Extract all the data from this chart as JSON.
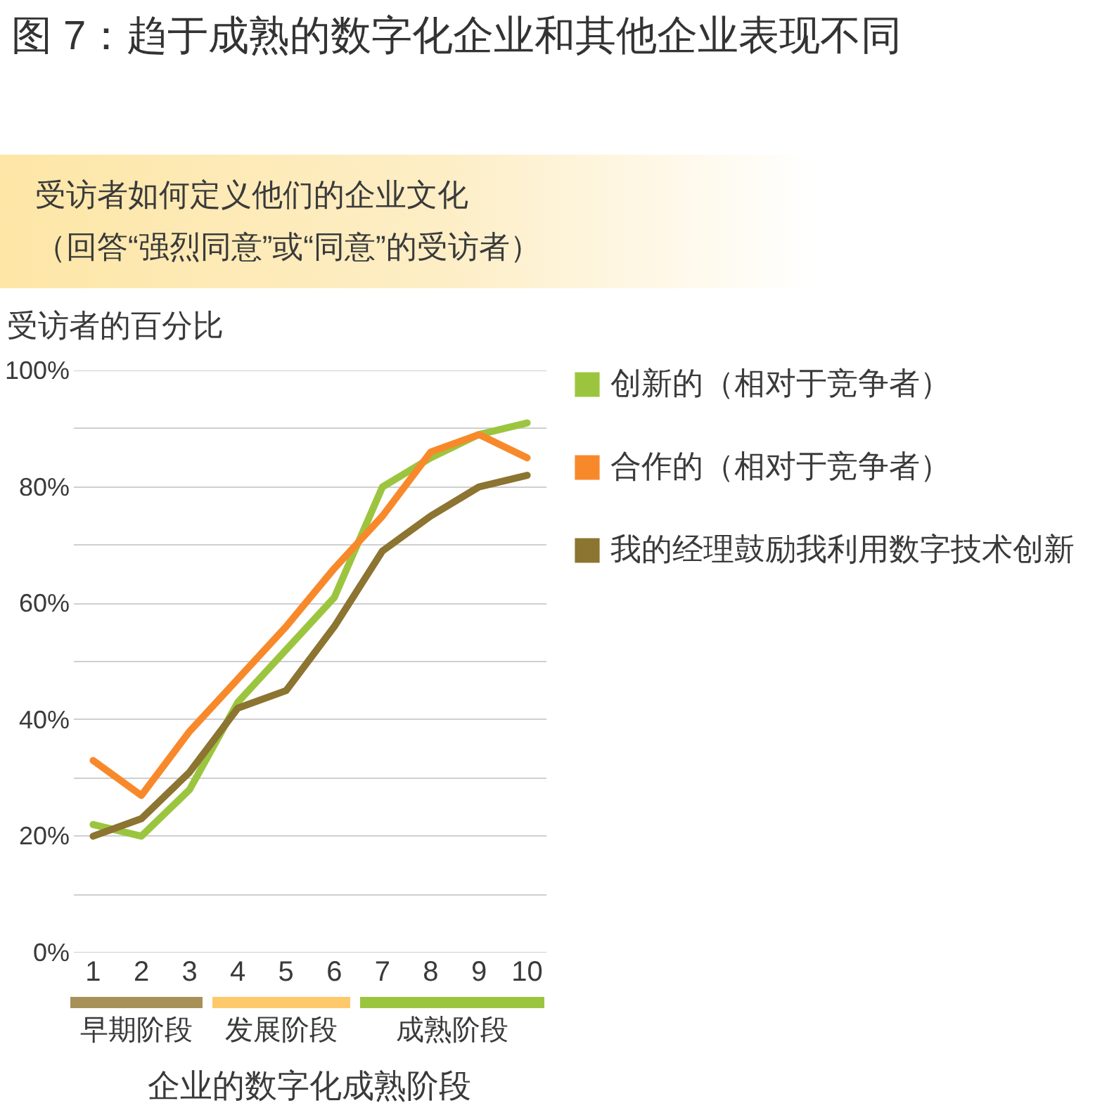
{
  "chart_data": {
    "type": "line",
    "title": "图 7：趋于成熟的数字化企业和其他企业表现不同",
    "subtitle": "受访者如何定义他们的企业文化",
    "annotations": [
      "（回答“强烈同意”或“同意”的受访者）",
      "早期阶段",
      "发展阶段",
      "成熟阶段"
    ],
    "ylabel": "受访者的百分比",
    "xlabel": "企业的数字化成熟阶段",
    "x": [
      1,
      2,
      3,
      4,
      5,
      6,
      7,
      8,
      9,
      10
    ],
    "series": [
      {
        "name": "创新的（相对于竞争者）",
        "color": "#9cc53f",
        "values": [
          22,
          20,
          28,
          43,
          52,
          61,
          80,
          85,
          89,
          91
        ]
      },
      {
        "name": "合作的（相对于竞争者）",
        "color": "#f8892b",
        "values": [
          33,
          27,
          38,
          47,
          56,
          66,
          75,
          86,
          89,
          85
        ]
      },
      {
        "name": "我的经理鼓励我利用数字技术创新",
        "color": "#8c7431",
        "values": [
          20,
          23,
          31,
          42,
          45,
          56,
          69,
          75,
          80,
          82
        ]
      }
    ],
    "xlim": [
      0.6,
      10.4
    ],
    "xticks": [
      1,
      2,
      3,
      4,
      5,
      6,
      7,
      8,
      9,
      10
    ],
    "ylim": [
      0,
      100
    ],
    "yticks": [
      {
        "value": 0,
        "label": "0%"
      },
      {
        "value": 10,
        "label": null
      },
      {
        "value": 20,
        "label": "20%"
      },
      {
        "value": 30,
        "label": null
      },
      {
        "value": 40,
        "label": "40%"
      },
      {
        "value": 50,
        "label": null
      },
      {
        "value": 60,
        "label": "60%"
      },
      {
        "value": 70,
        "label": null
      },
      {
        "value": 80,
        "label": "80%"
      },
      {
        "value": 90,
        "label": null
      },
      {
        "value": 100,
        "label": "100%"
      }
    ],
    "grid": "y",
    "legend": "right"
  }
}
